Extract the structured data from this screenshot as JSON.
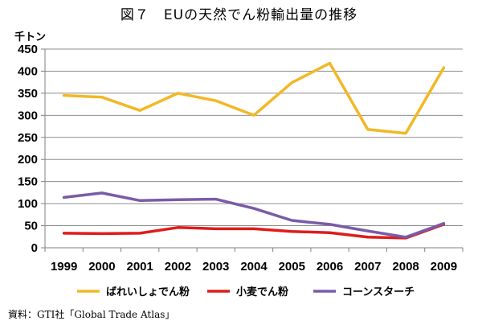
{
  "title": "図７　EUの天然でん粉輸出量の推移",
  "unit": "千トン",
  "source": "資料：GTI社「Global Trade Atlas」",
  "chart_data": {
    "type": "line",
    "title": "図７　EUの天然でん粉輸出量の推移",
    "xlabel": "",
    "ylabel": "千トン",
    "categories": [
      "1999",
      "2000",
      "2001",
      "2002",
      "2003",
      "2004",
      "2005",
      "2006",
      "2007",
      "2008",
      "2009"
    ],
    "ylim": [
      0,
      450
    ],
    "yticks": [
      0,
      50,
      100,
      150,
      200,
      250,
      300,
      350,
      400,
      450
    ],
    "grid": true,
    "legend": "bottom",
    "series": [
      {
        "name": "ばれいしょでん粉",
        "color": "#f2b825",
        "values": [
          345,
          341,
          311,
          350,
          333,
          300,
          374,
          418,
          268,
          259,
          408
        ]
      },
      {
        "name": "小麦でん粉",
        "color": "#e01b1b",
        "values": [
          33,
          32,
          33,
          46,
          43,
          43,
          37,
          34,
          24,
          22,
          53
        ]
      },
      {
        "name": "コーンスターチ",
        "color": "#7a5ba8",
        "values": [
          114,
          124,
          107,
          109,
          110,
          89,
          62,
          53,
          38,
          24,
          55
        ]
      }
    ]
  }
}
